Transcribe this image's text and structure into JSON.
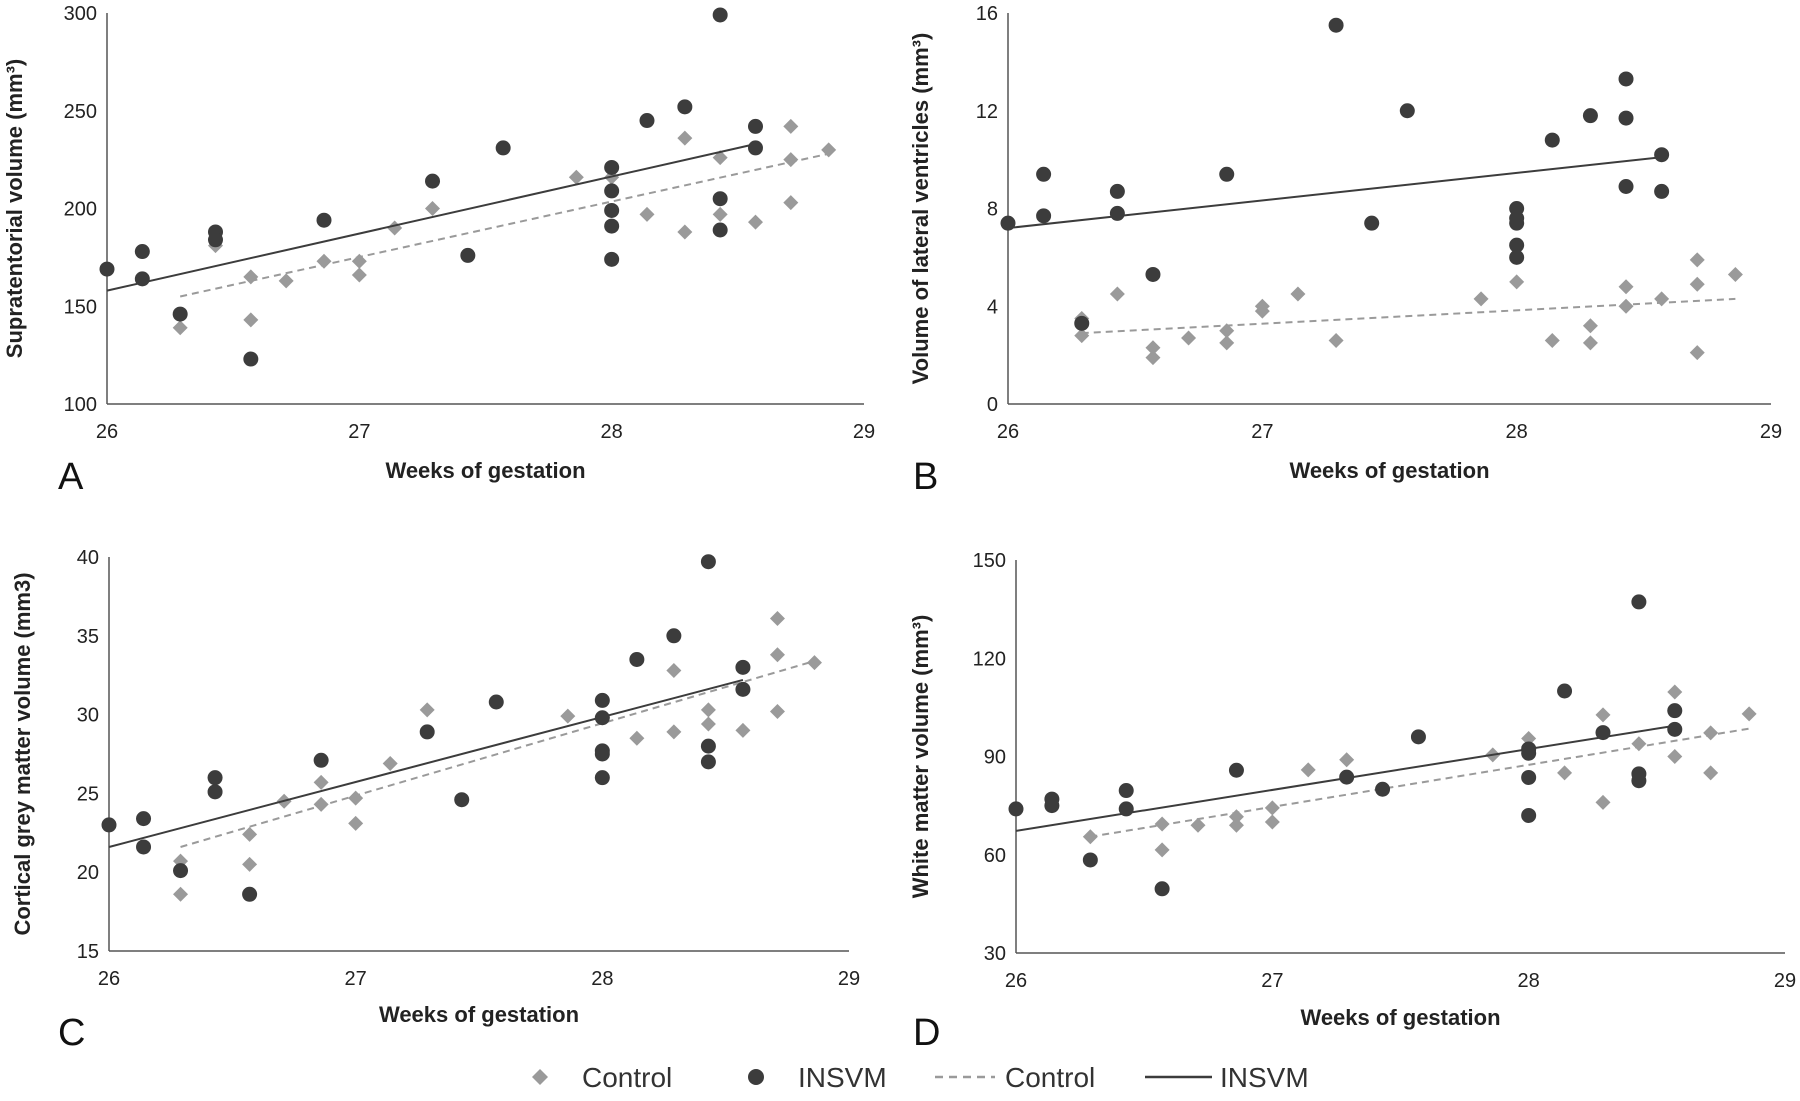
{
  "colors": {
    "control": "#9a9a9a",
    "insvm": "#3c3c3c",
    "axis": "#555555"
  },
  "legend": [
    {
      "label": "Control",
      "marker": "diamond"
    },
    {
      "label": "INSVM",
      "marker": "circle"
    },
    {
      "label": "Control",
      "marker": "dashed-line"
    },
    {
      "label": "INSVM",
      "marker": "solid-line"
    }
  ],
  "chart_data": [
    {
      "type": "scatter",
      "panel": "A",
      "xlabel": "Weeks of gestation",
      "ylabel": "Supratentorial volume (mm³)",
      "xlim": [
        26,
        29
      ],
      "xticks": [
        26,
        27,
        28,
        29
      ],
      "ylim": [
        100,
        300
      ],
      "yticks": [
        100,
        150,
        200,
        250,
        300
      ],
      "series": [
        {
          "name": "Control",
          "marker": "diamond",
          "points": [
            [
              26.29,
              139
            ],
            [
              26.43,
              181
            ],
            [
              26.57,
              165
            ],
            [
              26.57,
              143
            ],
            [
              26.71,
              163
            ],
            [
              26.86,
              173
            ],
            [
              27.0,
              173
            ],
            [
              27.0,
              166
            ],
            [
              27.14,
              190
            ],
            [
              27.29,
              200
            ],
            [
              27.86,
              216
            ],
            [
              28.0,
              216
            ],
            [
              28.14,
              197
            ],
            [
              28.29,
              236
            ],
            [
              28.29,
              188
            ],
            [
              28.43,
              226
            ],
            [
              28.43,
              197
            ],
            [
              28.57,
              193
            ],
            [
              28.71,
              242
            ],
            [
              28.71,
              225
            ],
            [
              28.71,
              203
            ],
            [
              28.86,
              230
            ]
          ],
          "trend": [
            [
              26.29,
              155
            ],
            [
              28.86,
              228
            ]
          ]
        },
        {
          "name": "INSVM",
          "marker": "circle",
          "points": [
            [
              26.0,
              169
            ],
            [
              26.14,
              178
            ],
            [
              26.14,
              164
            ],
            [
              26.29,
              146
            ],
            [
              26.43,
              188
            ],
            [
              26.43,
              184
            ],
            [
              26.57,
              123
            ],
            [
              26.86,
              194
            ],
            [
              27.29,
              214
            ],
            [
              27.43,
              176
            ],
            [
              27.57,
              231
            ],
            [
              28.0,
              221
            ],
            [
              28.0,
              209
            ],
            [
              28.0,
              199
            ],
            [
              28.0,
              191
            ],
            [
              28.0,
              174
            ],
            [
              28.14,
              245
            ],
            [
              28.29,
              252
            ],
            [
              28.43,
              299
            ],
            [
              28.43,
              205
            ],
            [
              28.43,
              189
            ],
            [
              28.57,
              242
            ],
            [
              28.57,
              231
            ]
          ],
          "trend": [
            [
              26.0,
              158
            ],
            [
              28.57,
              233
            ]
          ]
        }
      ]
    },
    {
      "type": "scatter",
      "panel": "B",
      "xlabel": "Weeks of gestation",
      "ylabel": "Volume of lateral ventricles (mm³)",
      "xlim": [
        26,
        29
      ],
      "xticks": [
        26,
        27,
        28,
        29
      ],
      "ylim": [
        0,
        16
      ],
      "yticks": [
        0,
        4,
        8,
        12,
        16
      ],
      "series": [
        {
          "name": "Control",
          "marker": "diamond",
          "points": [
            [
              26.29,
              3.5
            ],
            [
              26.29,
              2.8
            ],
            [
              26.43,
              4.5
            ],
            [
              26.57,
              2.3
            ],
            [
              26.57,
              1.9
            ],
            [
              26.71,
              2.7
            ],
            [
              26.86,
              3.0
            ],
            [
              26.86,
              2.5
            ],
            [
              27.0,
              4.0
            ],
            [
              27.0,
              3.8
            ],
            [
              27.14,
              4.5
            ],
            [
              27.29,
              2.6
            ],
            [
              27.86,
              4.3
            ],
            [
              28.0,
              5.0
            ],
            [
              28.14,
              2.6
            ],
            [
              28.29,
              3.2
            ],
            [
              28.29,
              2.5
            ],
            [
              28.43,
              4.8
            ],
            [
              28.43,
              4.0
            ],
            [
              28.57,
              4.3
            ],
            [
              28.71,
              5.9
            ],
            [
              28.71,
              4.9
            ],
            [
              28.71,
              2.1
            ],
            [
              28.86,
              5.3
            ]
          ],
          "trend": [
            [
              26.29,
              2.9
            ],
            [
              28.86,
              4.3
            ]
          ]
        },
        {
          "name": "INSVM",
          "marker": "circle",
          "points": [
            [
              26.0,
              7.4
            ],
            [
              26.14,
              9.4
            ],
            [
              26.14,
              7.7
            ],
            [
              26.29,
              3.3
            ],
            [
              26.43,
              8.7
            ],
            [
              26.43,
              7.8
            ],
            [
              26.57,
              5.3
            ],
            [
              26.86,
              9.4
            ],
            [
              27.29,
              15.5
            ],
            [
              27.43,
              7.4
            ],
            [
              27.57,
              12.0
            ],
            [
              28.0,
              8.0
            ],
            [
              28.0,
              7.6
            ],
            [
              28.0,
              7.4
            ],
            [
              28.0,
              6.5
            ],
            [
              28.0,
              6.0
            ],
            [
              28.14,
              10.8
            ],
            [
              28.29,
              11.8
            ],
            [
              28.43,
              13.3
            ],
            [
              28.43,
              11.7
            ],
            [
              28.43,
              8.9
            ],
            [
              28.57,
              10.2
            ],
            [
              28.57,
              8.7
            ]
          ],
          "trend": [
            [
              26.0,
              7.2
            ],
            [
              28.57,
              10.1
            ]
          ]
        }
      ]
    },
    {
      "type": "scatter",
      "panel": "C",
      "xlabel": "Weeks of gestation",
      "ylabel": "Cortical grey matter volume (mm3)",
      "xlim": [
        26,
        29
      ],
      "xticks": [
        26,
        27,
        28,
        29
      ],
      "ylim": [
        15,
        40
      ],
      "yticks": [
        15,
        20,
        25,
        30,
        35,
        40
      ],
      "series": [
        {
          "name": "Control",
          "marker": "diamond",
          "points": [
            [
              26.29,
              20.7
            ],
            [
              26.29,
              18.6
            ],
            [
              26.57,
              22.4
            ],
            [
              26.57,
              20.5
            ],
            [
              26.71,
              24.5
            ],
            [
              26.86,
              25.7
            ],
            [
              26.86,
              24.3
            ],
            [
              27.0,
              24.7
            ],
            [
              27.0,
              23.1
            ],
            [
              27.14,
              26.9
            ],
            [
              27.29,
              30.3
            ],
            [
              27.86,
              29.9
            ],
            [
              28.0,
              29.8
            ],
            [
              28.14,
              28.5
            ],
            [
              28.29,
              32.8
            ],
            [
              28.29,
              28.9
            ],
            [
              28.43,
              30.3
            ],
            [
              28.43,
              29.4
            ],
            [
              28.57,
              29.0
            ],
            [
              28.71,
              36.1
            ],
            [
              28.71,
              33.8
            ],
            [
              28.71,
              30.2
            ],
            [
              28.86,
              33.3
            ]
          ],
          "trend": [
            [
              26.29,
              21.6
            ],
            [
              28.86,
              33.4
            ]
          ]
        },
        {
          "name": "INSVM",
          "marker": "circle",
          "points": [
            [
              26.0,
              23.0
            ],
            [
              26.14,
              23.4
            ],
            [
              26.14,
              21.6
            ],
            [
              26.29,
              20.1
            ],
            [
              26.43,
              26.0
            ],
            [
              26.43,
              25.1
            ],
            [
              26.57,
              18.6
            ],
            [
              26.86,
              27.1
            ],
            [
              27.29,
              28.9
            ],
            [
              27.43,
              24.6
            ],
            [
              27.57,
              30.8
            ],
            [
              28.0,
              30.9
            ],
            [
              28.0,
              29.8
            ],
            [
              28.0,
              27.7
            ],
            [
              28.0,
              27.5
            ],
            [
              28.0,
              26.0
            ],
            [
              28.14,
              33.5
            ],
            [
              28.29,
              35.0
            ],
            [
              28.43,
              39.7
            ],
            [
              28.43,
              28.0
            ],
            [
              28.43,
              27.0
            ],
            [
              28.57,
              33.0
            ],
            [
              28.57,
              31.6
            ]
          ],
          "trend": [
            [
              26.0,
              21.6
            ],
            [
              28.57,
              32.2
            ]
          ]
        }
      ]
    },
    {
      "type": "scatter",
      "panel": "D",
      "xlabel": "Weeks of gestation",
      "ylabel": "White matter volume (mm³)",
      "xlim": [
        26,
        29
      ],
      "xticks": [
        26,
        27,
        28,
        29
      ],
      "ylim": [
        30,
        150
      ],
      "yticks": [
        30,
        60,
        90,
        120,
        150
      ],
      "series": [
        {
          "name": "Control",
          "marker": "diamond",
          "points": [
            [
              26.29,
              65.5
            ],
            [
              26.57,
              69.4
            ],
            [
              26.57,
              61.5
            ],
            [
              26.71,
              69.0
            ],
            [
              26.86,
              71.6
            ],
            [
              26.86,
              69.0
            ],
            [
              27.0,
              74.3
            ],
            [
              27.0,
              70.0
            ],
            [
              27.14,
              85.9
            ],
            [
              27.29,
              89.0
            ],
            [
              27.86,
              90.5
            ],
            [
              28.0,
              95.5
            ],
            [
              28.0,
              93.0
            ],
            [
              28.14,
              85.0
            ],
            [
              28.29,
              102.7
            ],
            [
              28.29,
              76.0
            ],
            [
              28.43,
              93.9
            ],
            [
              28.57,
              109.7
            ],
            [
              28.57,
              90.0
            ],
            [
              28.71,
              97.2
            ],
            [
              28.71,
              85.0
            ],
            [
              28.86,
              103.0
            ]
          ],
          "trend": [
            [
              26.29,
              65.5
            ],
            [
              28.86,
              98.5
            ]
          ]
        },
        {
          "name": "INSVM",
          "marker": "circle",
          "points": [
            [
              26.0,
              74.0
            ],
            [
              26.14,
              77.0
            ],
            [
              26.14,
              75.0
            ],
            [
              26.29,
              58.4
            ],
            [
              26.43,
              79.6
            ],
            [
              26.43,
              74.0
            ],
            [
              26.57,
              49.6
            ],
            [
              26.86,
              85.8
            ],
            [
              27.29,
              83.7
            ],
            [
              27.43,
              80.0
            ],
            [
              27.57,
              96.0
            ],
            [
              28.0,
              92.3
            ],
            [
              28.0,
              91.0
            ],
            [
              28.0,
              83.6
            ],
            [
              28.0,
              72.0
            ],
            [
              28.14,
              110.0
            ],
            [
              28.29,
              97.3
            ],
            [
              28.43,
              137.2
            ],
            [
              28.43,
              84.7
            ],
            [
              28.43,
              82.6
            ],
            [
              28.57,
              104.0
            ],
            [
              28.57,
              98.3
            ]
          ],
          "trend": [
            [
              26.0,
              67.3
            ],
            [
              28.57,
              99.4
            ]
          ]
        }
      ]
    }
  ]
}
